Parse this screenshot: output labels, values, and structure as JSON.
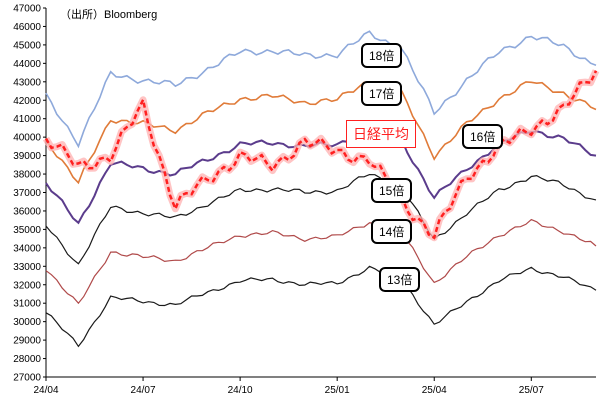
{
  "source_note": "（出所）Bloomberg",
  "chart_data": {
    "type": "line",
    "title": "",
    "xlabel": "",
    "ylabel": "",
    "ylim": [
      27000,
      47000
    ],
    "y_ticks": [
      "27000",
      "28000",
      "29000",
      "30000",
      "31000",
      "32000",
      "33000",
      "34000",
      "35000",
      "36000",
      "37000",
      "38000",
      "39000",
      "40000",
      "41000",
      "42000",
      "43000",
      "44000",
      "45000",
      "46000",
      "47000"
    ],
    "x_tick_labels": [
      "24/04",
      "24/07",
      "24/10",
      "25/01",
      "25/04",
      "25/07"
    ],
    "x_range": [
      "2024-04",
      "2025-09"
    ],
    "grid": "none",
    "series_labels": {
      "nikkei": "日経平均",
      "per18": "18倍",
      "per17": "17倍",
      "per16": "16倍",
      "per15": "15倍",
      "per14": "14倍",
      "per13": "13倍"
    },
    "colors": {
      "per18": "#8ea9db",
      "per17": "#e07b39",
      "per16": "#5b3c8c",
      "per15": "#1a1a1a",
      "per14": "#b04a4a",
      "per13": "#1a1a1a",
      "nikkei": "#ff2020"
    },
    "x": [
      "2024-04",
      "2024-05",
      "2024-06",
      "2024-07",
      "2024-08",
      "2024-09",
      "2024-10",
      "2024-11",
      "2024-12",
      "2025-01",
      "2025-02",
      "2025-03",
      "2025-04",
      "2025-05",
      "2025-06",
      "2025-07",
      "2025-08",
      "2025-09"
    ],
    "series": {
      "per18": [
        42200,
        39700,
        43400,
        43100,
        42800,
        43700,
        44600,
        44700,
        44400,
        44500,
        45600,
        44800,
        41300,
        43100,
        44600,
        45500,
        44900,
        43900
      ],
      "per17": [
        39900,
        37500,
        41000,
        40700,
        40400,
        41300,
        42100,
        42200,
        41900,
        42000,
        43100,
        42300,
        39000,
        40700,
        42100,
        43000,
        42400,
        41500
      ],
      "per16": [
        37500,
        35300,
        38600,
        38300,
        38000,
        38800,
        39600,
        39700,
        39500,
        39600,
        40500,
        39800,
        36700,
        38300,
        39600,
        40400,
        39900,
        39000
      ],
      "per15": [
        35200,
        33100,
        36200,
        35900,
        35600,
        36400,
        37100,
        37200,
        37000,
        37100,
        38000,
        37300,
        34400,
        35900,
        37100,
        37900,
        37400,
        36600
      ],
      "per14": [
        32900,
        30900,
        33800,
        33500,
        33300,
        34000,
        34700,
        34800,
        34500,
        34600,
        35400,
        34800,
        32100,
        33500,
        34700,
        35400,
        34900,
        34100
      ],
      "per13": [
        30500,
        28700,
        31300,
        31100,
        30900,
        31600,
        32200,
        32300,
        32000,
        32100,
        32900,
        32300,
        29800,
        31100,
        32200,
        32900,
        32400,
        31700
      ],
      "nikkei": [
        39800,
        38500,
        38900,
        41800,
        36200,
        37800,
        38900,
        38500,
        39700,
        39300,
        38700,
        36600,
        34600,
        37900,
        39400,
        40500,
        41500,
        43600
      ]
    }
  }
}
